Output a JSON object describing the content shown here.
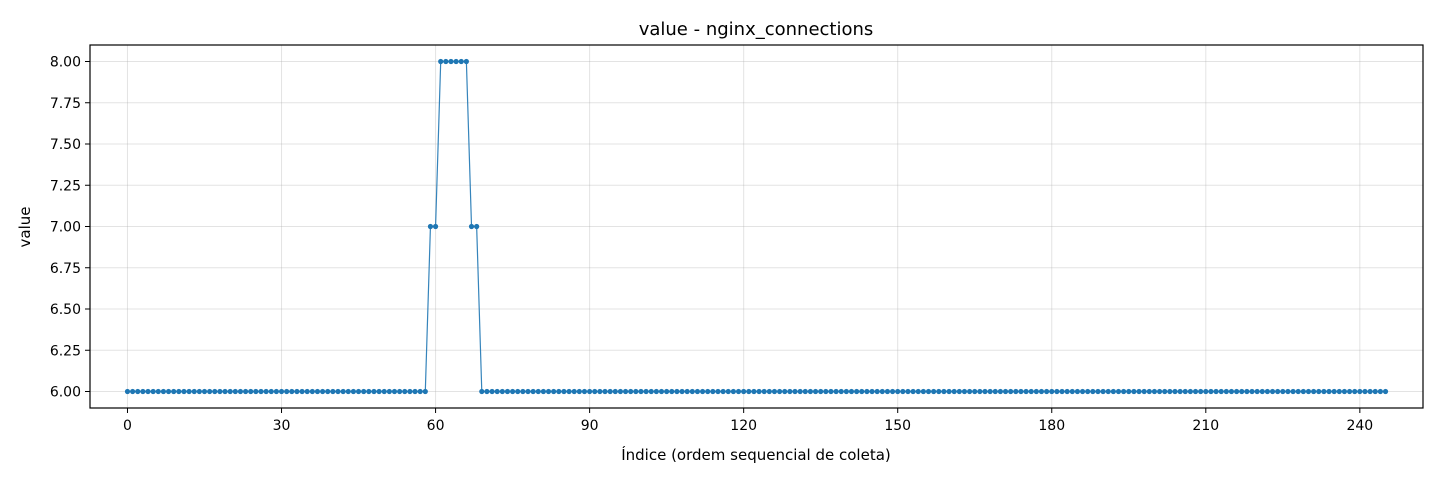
{
  "chart_data": {
    "type": "line",
    "title": "value - nginx_connections",
    "xlabel": "Índice (ordem sequencial de coleta)",
    "ylabel": "value",
    "xlim": [
      -7.3,
      252.3
    ],
    "ylim": [
      5.9,
      8.1
    ],
    "xticks": [
      0,
      30,
      60,
      90,
      120,
      150,
      180,
      210,
      240
    ],
    "yticks": [
      6.0,
      6.25,
      6.5,
      6.75,
      7.0,
      7.25,
      7.5,
      7.75,
      8.0
    ],
    "xtick_labels": [
      "0",
      "30",
      "60",
      "90",
      "120",
      "150",
      "180",
      "210",
      "240"
    ],
    "ytick_labels": [
      "6.00",
      "6.25",
      "6.50",
      "6.75",
      "7.00",
      "7.25",
      "7.50",
      "7.75",
      "8.00"
    ],
    "grid": true,
    "color": "#1f77b4",
    "series": [
      {
        "x_start": 0,
        "values": [
          6,
          6,
          6,
          6,
          6,
          6,
          6,
          6,
          6,
          6,
          6,
          6,
          6,
          6,
          6,
          6,
          6,
          6,
          6,
          6,
          6,
          6,
          6,
          6,
          6,
          6,
          6,
          6,
          6,
          6,
          6,
          6,
          6,
          6,
          6,
          6,
          6,
          6,
          6,
          6,
          6,
          6,
          6,
          6,
          6,
          6,
          6,
          6,
          6,
          6,
          6,
          6,
          6,
          6,
          6,
          6,
          6,
          6,
          6,
          7,
          7,
          8,
          8,
          8,
          8,
          8,
          8,
          7,
          7,
          6,
          6,
          6,
          6,
          6,
          6,
          6,
          6,
          6,
          6,
          6,
          6,
          6,
          6,
          6,
          6,
          6,
          6,
          6,
          6,
          6,
          6,
          6,
          6,
          6,
          6,
          6,
          6,
          6,
          6,
          6,
          6,
          6,
          6,
          6,
          6,
          6,
          6,
          6,
          6,
          6,
          6,
          6,
          6,
          6,
          6,
          6,
          6,
          6,
          6,
          6,
          6,
          6,
          6,
          6,
          6,
          6,
          6,
          6,
          6,
          6,
          6,
          6,
          6,
          6,
          6,
          6,
          6,
          6,
          6,
          6,
          6,
          6,
          6,
          6,
          6,
          6,
          6,
          6,
          6,
          6,
          6,
          6,
          6,
          6,
          6,
          6,
          6,
          6,
          6,
          6,
          6,
          6,
          6,
          6,
          6,
          6,
          6,
          6,
          6,
          6,
          6,
          6,
          6,
          6,
          6,
          6,
          6,
          6,
          6,
          6,
          6,
          6,
          6,
          6,
          6,
          6,
          6,
          6,
          6,
          6,
          6,
          6,
          6,
          6,
          6,
          6,
          6,
          6,
          6,
          6,
          6,
          6,
          6,
          6,
          6,
          6,
          6,
          6,
          6,
          6,
          6,
          6,
          6,
          6,
          6,
          6,
          6,
          6,
          6,
          6,
          6,
          6,
          6,
          6,
          6,
          6,
          6,
          6,
          6,
          6,
          6,
          6,
          6,
          6,
          6,
          6,
          6,
          6,
          6,
          6,
          6,
          6,
          6,
          6,
          6,
          6
        ]
      }
    ]
  }
}
